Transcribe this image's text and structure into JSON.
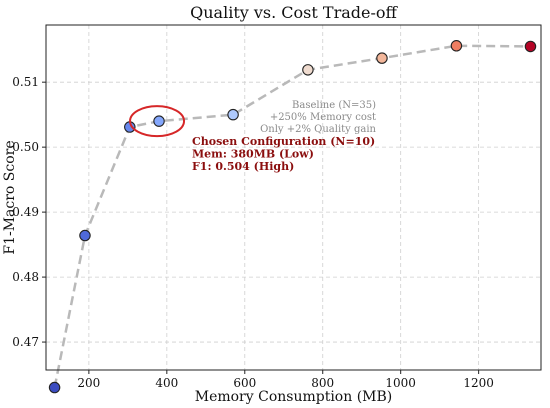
{
  "chart_data": {
    "type": "line",
    "title": "Quality vs. Cost Trade-off",
    "xlabel": "Memory Consumption (MB)",
    "ylabel": "F1-Macro Score",
    "xlim": [
      90,
      1360
    ],
    "ylim": [
      0.4657,
      0.5188
    ],
    "xticks": [
      200,
      400,
      600,
      800,
      1000,
      1200
    ],
    "yticks": [
      0.47,
      0.48,
      0.49,
      0.5,
      0.51
    ],
    "grid": true,
    "points": [
      {
        "x": 112,
        "y": 0.463,
        "color": "#3b4cc0"
      },
      {
        "x": 190,
        "y": 0.4864,
        "color": "#4f69d9"
      },
      {
        "x": 305,
        "y": 0.5031,
        "color": "#6788ee"
      },
      {
        "x": 380,
        "y": 0.504,
        "color": "#84a7fc"
      },
      {
        "x": 570,
        "y": 0.505,
        "color": "#aec9fc"
      },
      {
        "x": 762,
        "y": 0.5119,
        "color": "#efdbcf"
      },
      {
        "x": 952,
        "y": 0.5137,
        "color": "#f3b79b"
      },
      {
        "x": 1143,
        "y": 0.5156,
        "color": "#ee7e62"
      },
      {
        "x": 1333,
        "y": 0.5155,
        "color": "#b40426"
      }
    ],
    "highlight": {
      "x": 380,
      "y": 0.504,
      "ring_color": "#d62728"
    },
    "annotations": {
      "baseline": [
        "Baseline (N=35)",
        "+250% Memory cost",
        "Only +2% Quality gain"
      ],
      "chosen": [
        "Chosen Configuration (N=10)",
        "Mem: 380MB (Low)",
        "F1: 0.504 (High)"
      ]
    }
  }
}
